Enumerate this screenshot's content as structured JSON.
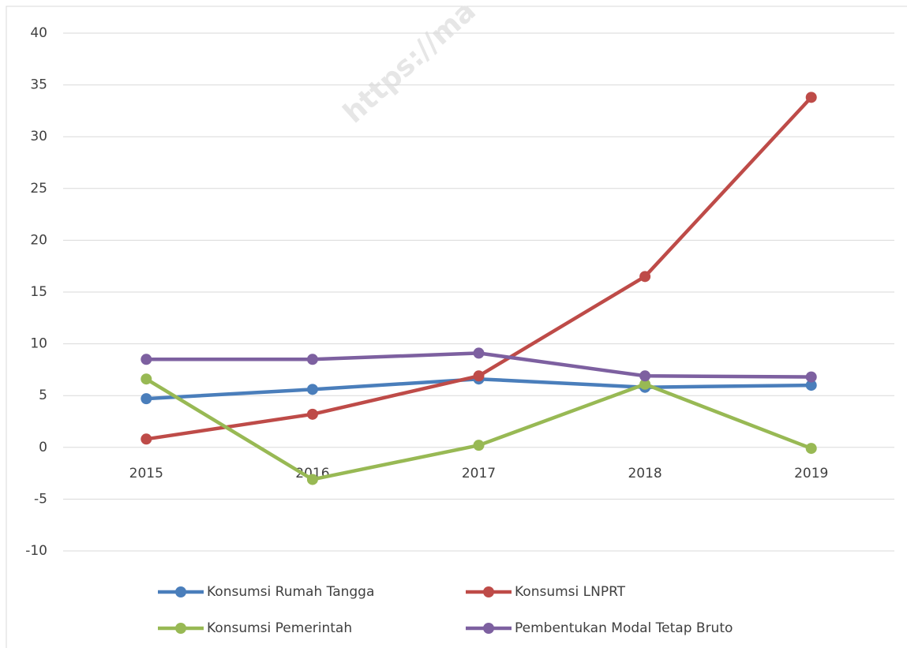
{
  "chart_data": {
    "type": "line",
    "watermark": "https://ma",
    "categories": [
      "2015",
      "2016",
      "2017",
      "2018",
      "2019"
    ],
    "series": [
      {
        "name": "Konsumsi Rumah Tangga",
        "color": "#4a7ebb",
        "values": [
          4.7,
          5.6,
          6.6,
          5.8,
          6.0
        ]
      },
      {
        "name": "Konsumsi LNPRT",
        "color": "#be4b48",
        "values": [
          0.8,
          3.2,
          6.9,
          16.5,
          33.8
        ]
      },
      {
        "name": "Konsumsi Pemerintah",
        "color": "#98b954",
        "values": [
          6.6,
          -3.1,
          0.2,
          6.1,
          -0.1
        ]
      },
      {
        "name": "Pembentukan Modal Tetap Bruto",
        "color": "#7d60a0",
        "values": [
          8.5,
          8.5,
          9.1,
          6.9,
          6.8
        ]
      }
    ],
    "ylim": [
      -10,
      40
    ],
    "yticks": [
      -10,
      -5,
      0,
      5,
      10,
      15,
      20,
      25,
      30,
      35,
      40
    ],
    "grid": true
  }
}
